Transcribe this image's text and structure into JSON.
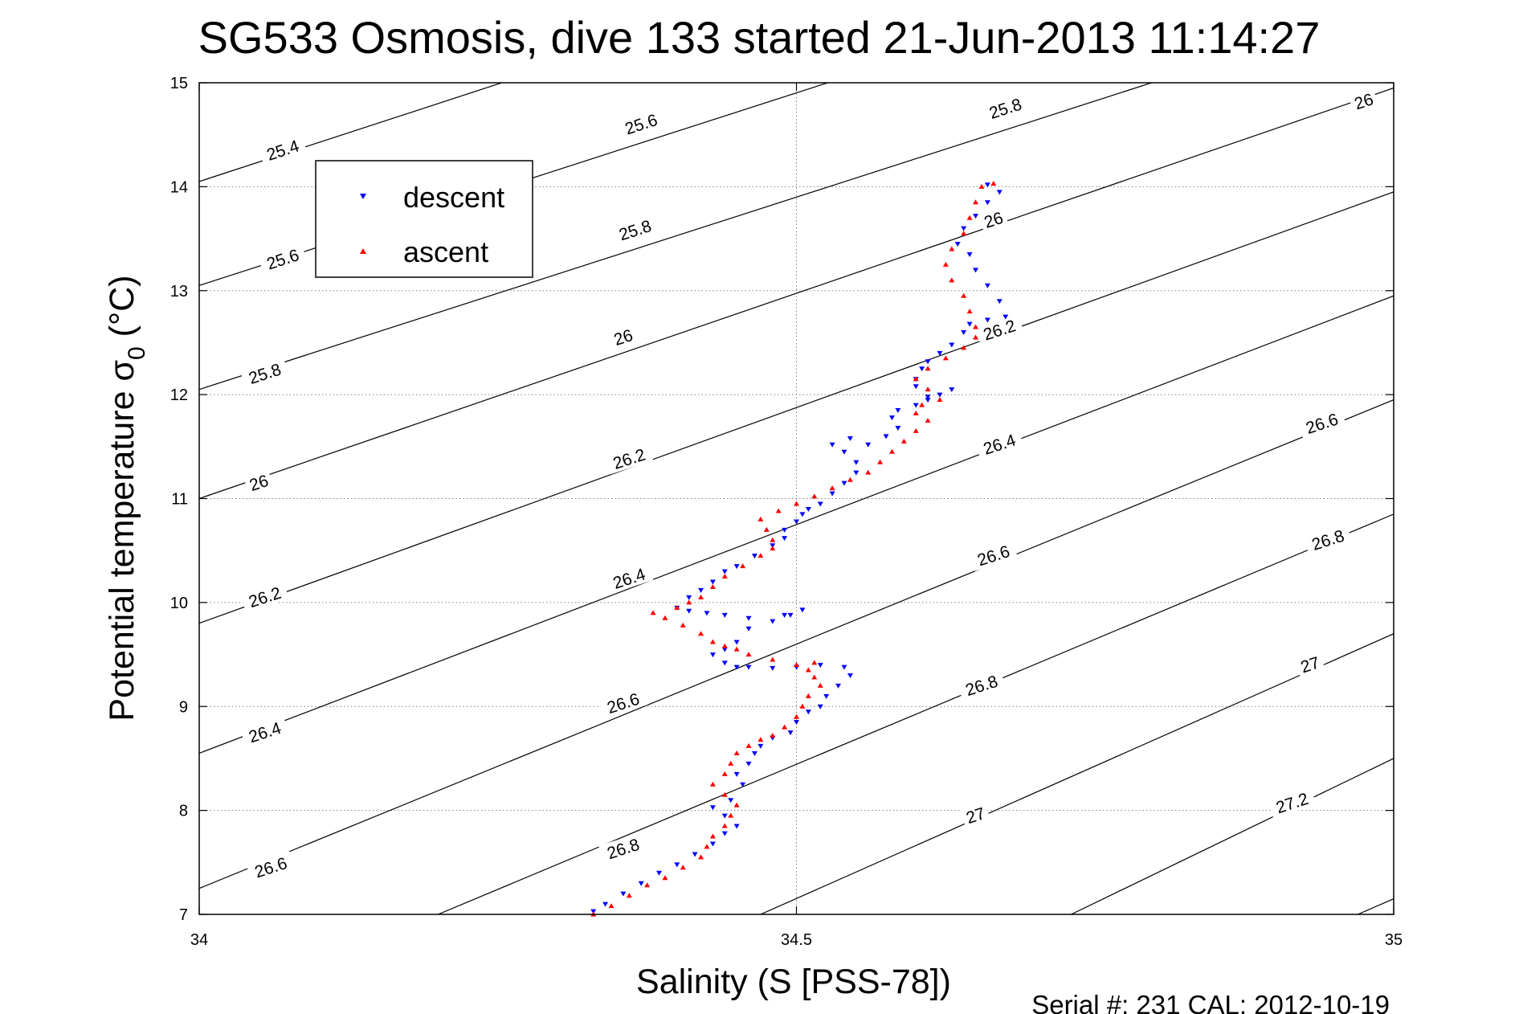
{
  "chart_data": {
    "type": "scatter",
    "title": "SG533 Osmosis, dive 133 started 21-Jun-2013 11:14:27",
    "xlabel": "Salinity (S [PSS-78])",
    "ylabel_main": "Potential temperature σ",
    "ylabel_sub": "0",
    "ylabel_unit": "(°C)",
    "xlim": [
      34,
      35
    ],
    "ylim": [
      7,
      15
    ],
    "xticks": [
      34,
      34.5,
      35
    ],
    "xtick_labels": [
      "34",
      "34.5",
      "35"
    ],
    "yticks": [
      7,
      8,
      9,
      10,
      11,
      12,
      13,
      14,
      15
    ],
    "ytick_labels": [
      "7",
      "8",
      "9",
      "10",
      "11",
      "12",
      "13",
      "14",
      "15"
    ],
    "grid": true,
    "legend_position": "top-left",
    "footer": "Serial #: 231  CAL: 2012-10-19",
    "colors": {
      "descent": "#0000ff",
      "ascent": "#ff0000",
      "contour": "#000000",
      "grid": "#808080"
    },
    "contours": [
      {
        "level": 25.4,
        "label": "25.4",
        "points": [
          [
            34.0,
            14.05
          ],
          [
            34.6,
            16.3
          ]
        ]
      },
      {
        "level": 25.6,
        "label": "25.6",
        "points": [
          [
            34.0,
            13.05
          ],
          [
            34.85,
            16.2
          ]
        ]
      },
      {
        "level": 25.8,
        "label": "25.8",
        "points": [
          [
            34.0,
            12.05
          ],
          [
            35.0,
            15.75
          ]
        ]
      },
      {
        "level": 26,
        "label": "26",
        "points": [
          [
            34.0,
            11.0
          ],
          [
            35.0,
            14.95
          ]
        ]
      },
      {
        "level": 26.2,
        "label": "26.2",
        "points": [
          [
            34.0,
            9.8
          ],
          [
            35.0,
            13.95
          ]
        ]
      },
      {
        "level": 26.4,
        "label": "26.4",
        "points": [
          [
            34.0,
            8.55
          ],
          [
            35.0,
            12.95
          ]
        ]
      },
      {
        "level": 26.6,
        "label": "26.6",
        "points": [
          [
            34.0,
            7.25
          ],
          [
            35.0,
            11.95
          ]
        ]
      },
      {
        "level": 26.8,
        "label": "26.8",
        "points": [
          [
            34.2,
            7.0
          ],
          [
            35.0,
            10.85
          ]
        ]
      },
      {
        "level": 27,
        "label": "27",
        "points": [
          [
            34.47,
            7.0
          ],
          [
            35.0,
            9.7
          ]
        ]
      },
      {
        "level": 27.2,
        "label": "27.2",
        "points": [
          [
            34.73,
            7.0
          ],
          [
            35.0,
            8.5
          ]
        ]
      },
      {
        "level": 27.4,
        "label": "",
        "points": [
          [
            34.97,
            7.0
          ],
          [
            35.0,
            7.15
          ]
        ]
      }
    ],
    "contour_labels": [
      {
        "text": "25.4",
        "x": 34.07,
        "y": 14.35
      },
      {
        "text": "25.6",
        "x": 34.07,
        "y": 13.3
      },
      {
        "text": "25.8",
        "x": 34.055,
        "y": 12.2
      },
      {
        "text": "26",
        "x": 34.05,
        "y": 11.15
      },
      {
        "text": "26.2",
        "x": 34.055,
        "y": 10.05
      },
      {
        "text": "26.4",
        "x": 34.055,
        "y": 8.75
      },
      {
        "text": "26.6",
        "x": 34.06,
        "y": 7.45
      },
      {
        "text": "25.6",
        "x": 34.37,
        "y": 14.6
      },
      {
        "text": "25.8",
        "x": 34.365,
        "y": 13.58
      },
      {
        "text": "26",
        "x": 34.355,
        "y": 12.55
      },
      {
        "text": "26.2",
        "x": 34.36,
        "y": 11.38
      },
      {
        "text": "26.4",
        "x": 34.36,
        "y": 10.23
      },
      {
        "text": "26.6",
        "x": 34.355,
        "y": 9.03
      },
      {
        "text": "26.8",
        "x": 34.355,
        "y": 7.63
      },
      {
        "text": "25.8",
        "x": 34.675,
        "y": 14.75
      },
      {
        "text": "26",
        "x": 34.665,
        "y": 13.68
      },
      {
        "text": "26.2",
        "x": 34.67,
        "y": 12.62
      },
      {
        "text": "26.4",
        "x": 34.67,
        "y": 11.52
      },
      {
        "text": "26.6",
        "x": 34.665,
        "y": 10.45
      },
      {
        "text": "26.8",
        "x": 34.655,
        "y": 9.2
      },
      {
        "text": "27",
        "x": 34.65,
        "y": 7.95
      },
      {
        "text": "26",
        "x": 34.975,
        "y": 14.82
      },
      {
        "text": "26.6",
        "x": 34.94,
        "y": 11.72
      },
      {
        "text": "26.8",
        "x": 34.945,
        "y": 10.6
      },
      {
        "text": "27",
        "x": 34.93,
        "y": 9.4
      },
      {
        "text": "27.2",
        "x": 34.915,
        "y": 8.07
      }
    ],
    "series": [
      {
        "name": "descent",
        "marker": "triangle-down",
        "points": [
          [
            34.33,
            7.03
          ],
          [
            34.34,
            7.1
          ],
          [
            34.355,
            7.2
          ],
          [
            34.37,
            7.3
          ],
          [
            34.385,
            7.4
          ],
          [
            34.4,
            7.48
          ],
          [
            34.415,
            7.58
          ],
          [
            34.43,
            7.68
          ],
          [
            34.44,
            7.78
          ],
          [
            34.45,
            7.85
          ],
          [
            34.44,
            7.95
          ],
          [
            34.43,
            8.03
          ],
          [
            34.445,
            8.1
          ],
          [
            34.455,
            8.25
          ],
          [
            34.45,
            8.35
          ],
          [
            34.46,
            8.45
          ],
          [
            34.465,
            8.55
          ],
          [
            34.47,
            8.62
          ],
          [
            34.48,
            8.7
          ],
          [
            34.495,
            8.75
          ],
          [
            34.5,
            8.85
          ],
          [
            34.51,
            8.95
          ],
          [
            34.52,
            9.0
          ],
          [
            34.525,
            9.1
          ],
          [
            34.535,
            9.2
          ],
          [
            34.545,
            9.3
          ],
          [
            34.54,
            9.38
          ],
          [
            34.52,
            9.4
          ],
          [
            34.5,
            9.38
          ],
          [
            34.48,
            9.37
          ],
          [
            34.46,
            9.38
          ],
          [
            34.45,
            9.38
          ],
          [
            34.44,
            9.42
          ],
          [
            34.43,
            9.5
          ],
          [
            34.44,
            9.55
          ],
          [
            34.45,
            9.62
          ],
          [
            34.46,
            9.75
          ],
          [
            34.48,
            9.82
          ],
          [
            34.495,
            9.88
          ],
          [
            34.505,
            9.93
          ],
          [
            34.49,
            9.88
          ],
          [
            34.46,
            9.85
          ],
          [
            34.44,
            9.88
          ],
          [
            34.425,
            9.9
          ],
          [
            34.41,
            9.92
          ],
          [
            34.4,
            9.95
          ],
          [
            34.41,
            10.05
          ],
          [
            34.42,
            10.12
          ],
          [
            34.43,
            10.2
          ],
          [
            34.44,
            10.3
          ],
          [
            34.45,
            10.35
          ],
          [
            34.465,
            10.45
          ],
          [
            34.48,
            10.55
          ],
          [
            34.49,
            10.62
          ],
          [
            34.49,
            10.7
          ],
          [
            34.5,
            10.78
          ],
          [
            34.505,
            10.85
          ],
          [
            34.51,
            10.9
          ],
          [
            34.52,
            10.95
          ],
          [
            34.53,
            11.05
          ],
          [
            34.54,
            11.15
          ],
          [
            34.55,
            11.25
          ],
          [
            34.55,
            11.35
          ],
          [
            34.54,
            11.45
          ],
          [
            34.53,
            11.52
          ],
          [
            34.545,
            11.58
          ],
          [
            34.56,
            11.52
          ],
          [
            34.575,
            11.6
          ],
          [
            34.585,
            11.68
          ],
          [
            34.58,
            11.78
          ],
          [
            34.585,
            11.85
          ],
          [
            34.6,
            11.9
          ],
          [
            34.61,
            11.95
          ],
          [
            34.62,
            12.0
          ],
          [
            34.63,
            12.05
          ],
          [
            34.61,
            11.98
          ],
          [
            34.6,
            12.08
          ],
          [
            34.6,
            12.15
          ],
          [
            34.605,
            12.25
          ],
          [
            34.61,
            12.32
          ],
          [
            34.62,
            12.4
          ],
          [
            34.63,
            12.48
          ],
          [
            34.64,
            12.6
          ],
          [
            34.645,
            12.68
          ],
          [
            34.66,
            12.72
          ],
          [
            34.675,
            12.75
          ],
          [
            34.67,
            12.9
          ],
          [
            34.66,
            13.05
          ],
          [
            34.65,
            13.2
          ],
          [
            34.645,
            13.35
          ],
          [
            34.635,
            13.45
          ],
          [
            34.64,
            13.6
          ],
          [
            34.65,
            13.72
          ],
          [
            34.66,
            13.85
          ],
          [
            34.67,
            13.95
          ],
          [
            34.66,
            14.02
          ]
        ]
      },
      {
        "name": "ascent",
        "marker": "triangle-up",
        "points": [
          [
            34.33,
            7.0
          ],
          [
            34.345,
            7.08
          ],
          [
            34.36,
            7.18
          ],
          [
            34.375,
            7.28
          ],
          [
            34.39,
            7.35
          ],
          [
            34.405,
            7.45
          ],
          [
            34.42,
            7.55
          ],
          [
            34.425,
            7.65
          ],
          [
            34.43,
            7.75
          ],
          [
            34.44,
            7.85
          ],
          [
            34.445,
            7.95
          ],
          [
            34.45,
            8.05
          ],
          [
            34.44,
            8.15
          ],
          [
            34.43,
            8.25
          ],
          [
            34.44,
            8.35
          ],
          [
            34.445,
            8.45
          ],
          [
            34.45,
            8.55
          ],
          [
            34.46,
            8.62
          ],
          [
            34.47,
            8.68
          ],
          [
            34.48,
            8.72
          ],
          [
            34.49,
            8.8
          ],
          [
            34.5,
            8.9
          ],
          [
            34.505,
            9.0
          ],
          [
            34.51,
            9.1
          ],
          [
            34.52,
            9.2
          ],
          [
            34.515,
            9.28
          ],
          [
            34.51,
            9.35
          ],
          [
            34.515,
            9.42
          ],
          [
            34.5,
            9.4
          ],
          [
            34.48,
            9.45
          ],
          [
            34.46,
            9.5
          ],
          [
            34.45,
            9.55
          ],
          [
            34.44,
            9.58
          ],
          [
            34.43,
            9.62
          ],
          [
            34.42,
            9.7
          ],
          [
            34.405,
            9.78
          ],
          [
            34.39,
            9.85
          ],
          [
            34.38,
            9.9
          ],
          [
            34.4,
            9.95
          ],
          [
            34.41,
            10.0
          ],
          [
            34.42,
            10.05
          ],
          [
            34.43,
            10.15
          ],
          [
            34.44,
            10.25
          ],
          [
            34.455,
            10.35
          ],
          [
            34.47,
            10.45
          ],
          [
            34.48,
            10.52
          ],
          [
            34.48,
            10.6
          ],
          [
            34.475,
            10.7
          ],
          [
            34.47,
            10.8
          ],
          [
            34.485,
            10.88
          ],
          [
            34.5,
            10.95
          ],
          [
            34.515,
            11.02
          ],
          [
            34.53,
            11.1
          ],
          [
            34.545,
            11.18
          ],
          [
            34.56,
            11.25
          ],
          [
            34.57,
            11.35
          ],
          [
            34.58,
            11.45
          ],
          [
            34.59,
            11.55
          ],
          [
            34.6,
            11.65
          ],
          [
            34.61,
            11.75
          ],
          [
            34.6,
            11.82
          ],
          [
            34.605,
            11.9
          ],
          [
            34.62,
            11.95
          ],
          [
            34.61,
            12.05
          ],
          [
            34.6,
            12.15
          ],
          [
            34.61,
            12.25
          ],
          [
            34.625,
            12.35
          ],
          [
            34.64,
            12.45
          ],
          [
            34.65,
            12.55
          ],
          [
            34.65,
            12.65
          ],
          [
            34.645,
            12.8
          ],
          [
            34.64,
            12.95
          ],
          [
            34.63,
            13.1
          ],
          [
            34.625,
            13.25
          ],
          [
            34.63,
            13.4
          ],
          [
            34.64,
            13.55
          ],
          [
            34.645,
            13.7
          ],
          [
            34.65,
            13.85
          ],
          [
            34.655,
            14.0
          ],
          [
            34.665,
            14.03
          ]
        ]
      }
    ]
  }
}
